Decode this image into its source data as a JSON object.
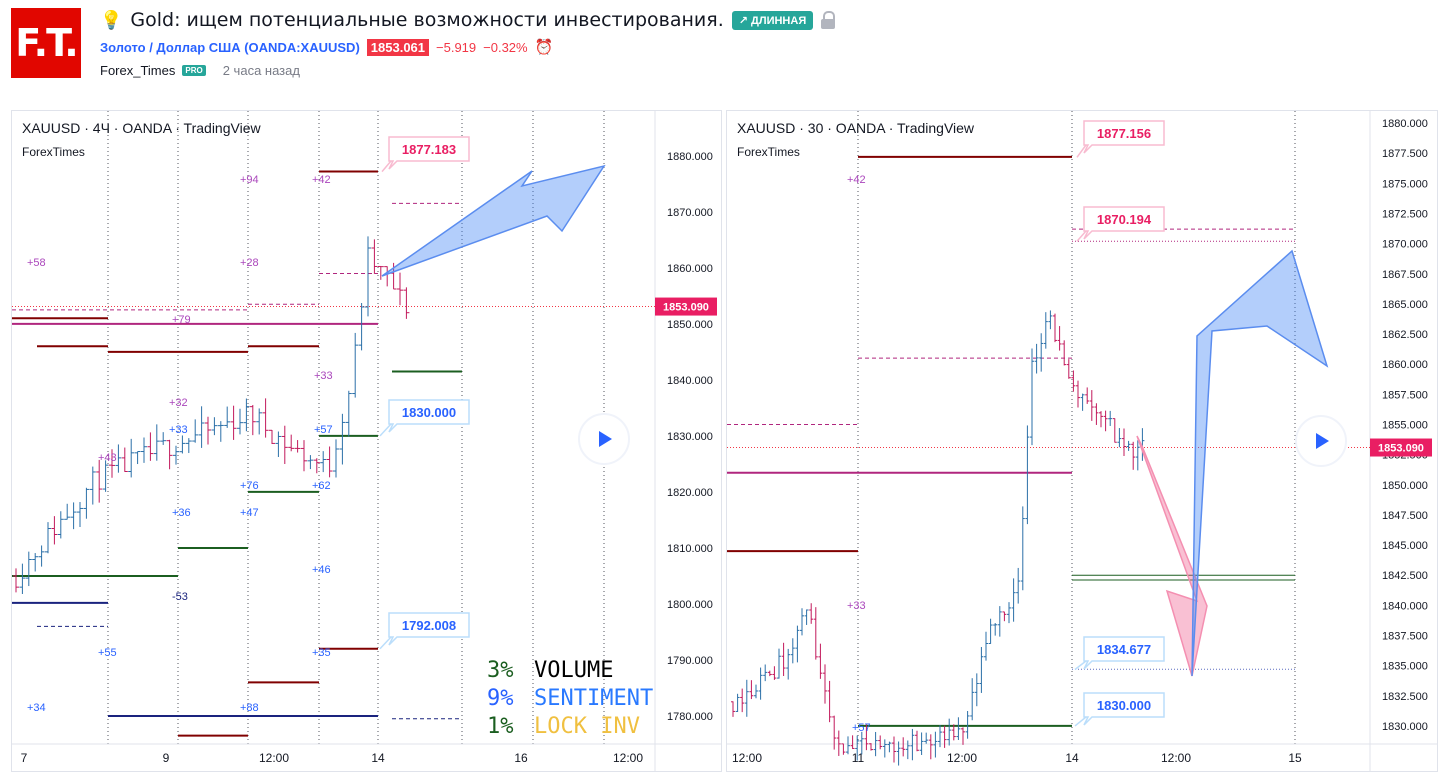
{
  "header": {
    "logo_text": "F.T.",
    "bulb_icon": "lightbulb-icon",
    "title": "Gold: ищем потенциальные возможности инвестирования.",
    "badge_long": "↗ ДЛИННАЯ",
    "symbol_full": "Золото / Доллар США (OANDA:XAUUSD)",
    "price": "1853.061",
    "change": "−5.919",
    "change_pct": "−0.32%",
    "author": "Forex_Times",
    "pro": "PRO",
    "time_ago": "2 часа назад"
  },
  "chart_data": [
    {
      "type": "candlestick",
      "title": "XAUUSD · 4Ч · OANDA · TradingView",
      "subtitle": "ForexTimes",
      "ylim": [
        1775,
        1888
      ],
      "y_ticks": [
        "1880.000",
        "1870.000",
        "1860.000",
        "1850.000",
        "1840.000",
        "1830.000",
        "1820.000",
        "1810.000",
        "1800.000",
        "1790.000",
        "1780.000"
      ],
      "y_tick_values": [
        1880,
        1870,
        1860,
        1850,
        1840,
        1830,
        1820,
        1810,
        1800,
        1790,
        1780
      ],
      "x_ticks": [
        "7",
        "9",
        "12:00",
        "14",
        "16",
        "12:00"
      ],
      "current_price_label": "1853.090",
      "current_price": 1853.09,
      "price_labels": [
        {
          "text": "1877.183",
          "value": 1877.183,
          "color": "#e91e63"
        },
        {
          "text": "1830.000",
          "value": 1830.0,
          "color": "#2962ff"
        },
        {
          "text": "1792.008",
          "value": 1792.008,
          "color": "#2962ff"
        }
      ],
      "annotations": [
        {
          "text": "+94",
          "color": "#ab47bc"
        },
        {
          "text": "+42",
          "color": "#ab47bc"
        },
        {
          "text": "+58",
          "color": "#ab47bc"
        },
        {
          "text": "+28",
          "color": "#ab47bc"
        },
        {
          "text": "+79",
          "color": "#ab47bc"
        },
        {
          "text": "+32",
          "color": "#ab47bc"
        },
        {
          "text": "+33",
          "color": "#ab47bc"
        },
        {
          "text": "+43",
          "color": "#ab47bc"
        },
        {
          "text": "+33",
          "color": "#2962ff"
        },
        {
          "text": "+57",
          "color": "#2962ff"
        },
        {
          "text": "+76",
          "color": "#2962ff"
        },
        {
          "text": "+62",
          "color": "#2962ff"
        },
        {
          "text": "+36",
          "color": "#2962ff"
        },
        {
          "text": "+47",
          "color": "#2962ff"
        },
        {
          "text": "+46",
          "color": "#2962ff"
        },
        {
          "text": "-53",
          "color": "#1a237e"
        },
        {
          "text": "+55",
          "color": "#2962ff"
        },
        {
          "text": "+35",
          "color": "#2962ff"
        },
        {
          "text": "+34",
          "color": "#2962ff"
        },
        {
          "text": "+88",
          "color": "#2962ff"
        }
      ],
      "stats": [
        {
          "pct": "3%",
          "label": "VOLUME",
          "pct_color": "#1b5e20",
          "label_color": "#000000"
        },
        {
          "pct": "9%",
          "label": "SENTIMENT",
          "pct_color": "#2962ff",
          "label_color": "#2979ff"
        },
        {
          "pct": "1%",
          "label": "LOCK INV",
          "pct_color": "#1b5e20",
          "label_color": "#f0c040"
        }
      ]
    },
    {
      "type": "candlestick",
      "title": "XAUUSD · 30 · OANDA · TradingView",
      "subtitle": "ForexTimes",
      "ylim": [
        1828.5,
        1881
      ],
      "y_ticks": [
        "1880.000",
        "1877.500",
        "1875.000",
        "1872.500",
        "1870.000",
        "1867.500",
        "1865.000",
        "1862.500",
        "1860.000",
        "1857.500",
        "1855.000",
        "1852.500",
        "1850.000",
        "1847.500",
        "1845.000",
        "1842.500",
        "1840.000",
        "1837.500",
        "1835.000",
        "1832.500",
        "1830.000"
      ],
      "y_tick_values": [
        1880,
        1877.5,
        1875,
        1872.5,
        1870,
        1867.5,
        1865,
        1862.5,
        1860,
        1857.5,
        1855,
        1852.5,
        1850,
        1847.5,
        1845,
        1842.5,
        1840,
        1837.5,
        1835,
        1832.5,
        1830
      ],
      "x_ticks": [
        "12:00",
        "11",
        "12:00",
        "14",
        "12:00",
        "15"
      ],
      "current_price_label": "1853.090",
      "current_price": 1853.09,
      "price_labels": [
        {
          "text": "1877.156",
          "value": 1877.156,
          "color": "#e91e63"
        },
        {
          "text": "1870.194",
          "value": 1870.194,
          "color": "#e91e63"
        },
        {
          "text": "1834.677",
          "value": 1834.677,
          "color": "#2962ff"
        },
        {
          "text": "1830.000",
          "value": 1830.0,
          "color": "#2962ff"
        }
      ],
      "annotations": [
        {
          "text": "+42",
          "color": "#ab47bc"
        },
        {
          "text": "+33",
          "color": "#ab47bc"
        },
        {
          "text": "+57",
          "color": "#2962ff"
        }
      ]
    }
  ]
}
